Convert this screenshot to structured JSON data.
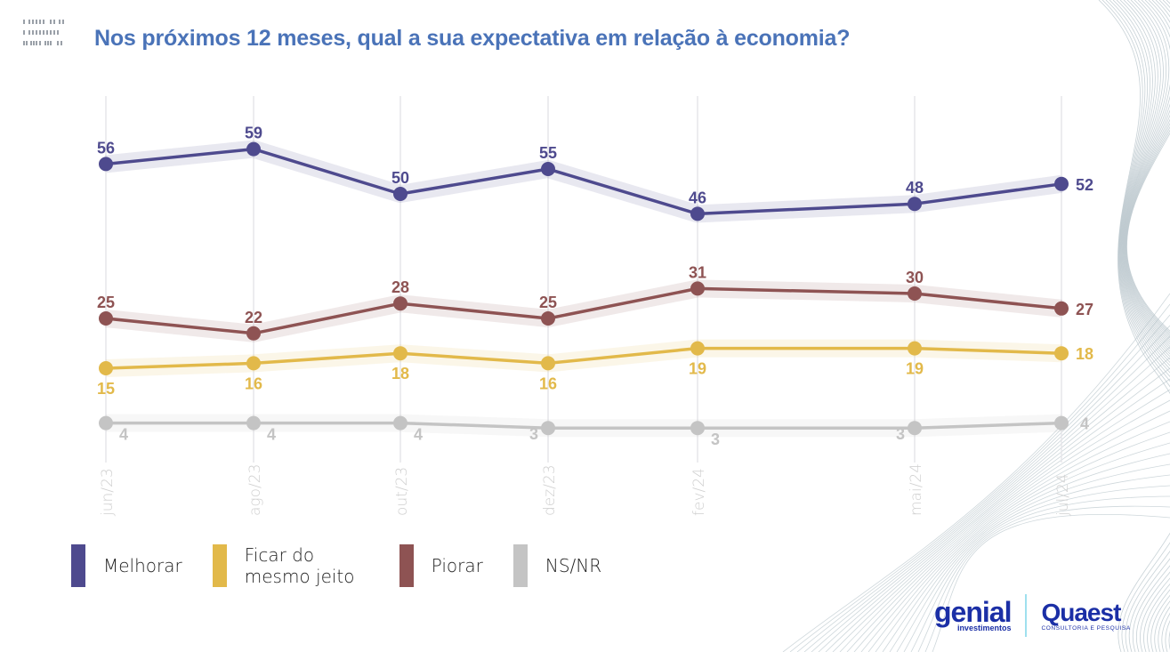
{
  "title": "Nos próximos 12 meses, qual a sua expectativa em relação à economia?",
  "colors": {
    "title": "#4a73b8",
    "melhorar": "#4e4a8e",
    "ficar": "#e2b94a",
    "piorar": "#8e5353",
    "nsnr": "#c4c4c4",
    "logo": "#1b2fa6"
  },
  "legend": [
    {
      "key": "melhorar",
      "label": "Melhorar"
    },
    {
      "key": "ficar",
      "label": "Ficar do mesmo jeito"
    },
    {
      "key": "piorar",
      "label": "Piorar"
    },
    {
      "key": "nsnr",
      "label": "NS/NR"
    }
  ],
  "logos": {
    "genial_main": "genial",
    "genial_sub": "investimentos",
    "quaest_main": "Quaest",
    "quaest_sub": "CONSULTORIA E PESQUISA"
  },
  "chart_data": {
    "type": "line",
    "title": "Nos próximos 12 meses, qual a sua expectativa em relação à economia?",
    "xlabel": "",
    "ylabel": "",
    "categories": [
      "jun/23",
      "ago/23",
      "out/23",
      "dez/23",
      "fev/24",
      "mai/24",
      "jul/24"
    ],
    "ylim": [
      0,
      70
    ],
    "grid": "vertical",
    "legend_position": "bottom-left",
    "series": [
      {
        "name": "Melhorar",
        "key": "melhorar",
        "values": [
          56,
          59,
          50,
          55,
          46,
          48,
          52
        ],
        "label_position": "above"
      },
      {
        "name": "Piorar",
        "key": "piorar",
        "values": [
          25,
          22,
          28,
          25,
          31,
          30,
          27
        ],
        "label_position": "above"
      },
      {
        "name": "Ficar do mesmo jeito",
        "key": "ficar",
        "values": [
          15,
          16,
          18,
          16,
          19,
          19,
          18
        ],
        "label_position": "below"
      },
      {
        "name": "NS/NR",
        "key": "nsnr",
        "values": [
          4,
          4,
          4,
          3,
          3,
          3,
          4
        ],
        "label_position": "below-side"
      }
    ]
  }
}
